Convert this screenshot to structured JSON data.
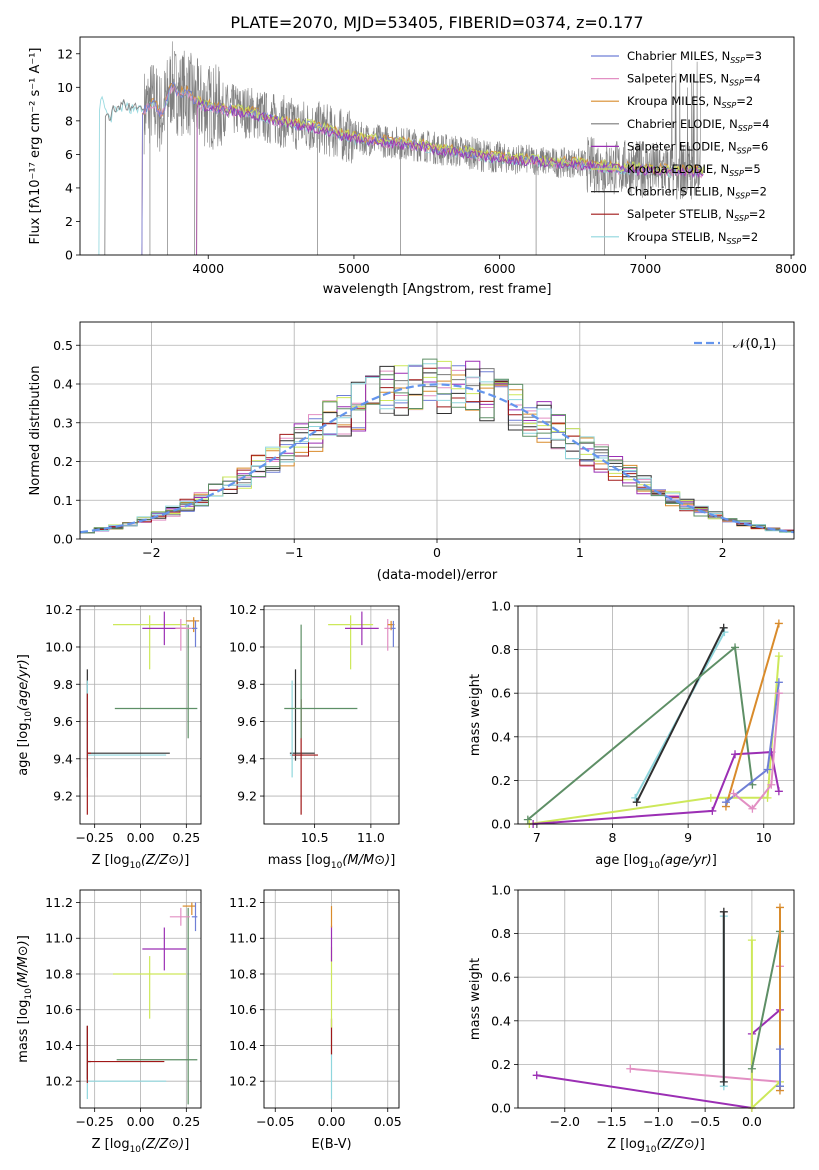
{
  "figure": {
    "title": "PLATE=2070, MJD=53405, FIBERID=0374, z=0.177"
  },
  "colors": {
    "Chabrier MILES": "#6f7fd6",
    "Salpeter MILES": "#e28fc3",
    "Kroupa MILES": "#d98b2b",
    "Chabrier ELODIE": "#7a7a7a",
    "Salpeter ELODIE": "#9b2fb4",
    "Kroupa ELODIE": "#cde85a",
    "Chabrier STELIB": "#2f2f2f",
    "Salpeter STELIB": "#a01818",
    "Kroupa STELIB": "#8fd6dd",
    "Kroupa ELODIE alt": "#5e8f66",
    "normal": "#6495ed",
    "data": "#808080"
  },
  "chart_data": [
    {
      "id": "spectrum",
      "type": "line",
      "title": "PLATE=2070, MJD=53405, FIBERID=0374, z=0.177",
      "xlabel": "wavelength [Angstrom, rest frame]",
      "ylabel": "Flux [fλ10⁻¹⁷ erg cm⁻² s⁻¹ A⁻¹]",
      "xlim": [
        3120,
        8020
      ],
      "ylim": [
        0,
        13
      ],
      "xticks": [
        4000,
        5000,
        6000,
        7000,
        8000
      ],
      "yticks": [
        0,
        2,
        4,
        6,
        8,
        10,
        12
      ],
      "grid": false,
      "legend_position": "top-right",
      "legend": [
        {
          "label": "Chabrier MILES, N_SSP=3",
          "text": "Chabrier MILES, N",
          "n": "=3",
          "color_key": "Chabrier MILES"
        },
        {
          "label": "Salpeter MILES, N_SSP=4",
          "text": "Salpeter MILES, N",
          "n": "=4",
          "color_key": "Salpeter MILES"
        },
        {
          "label": "Kroupa MILES, N_SSP=2",
          "text": "Kroupa MILES, N",
          "n": "=2",
          "color_key": "Kroupa MILES"
        },
        {
          "label": "Chabrier ELODIE, N_SSP=4",
          "text": "Chabrier ELODIE, N",
          "n": "=4",
          "color_key": "Chabrier ELODIE"
        },
        {
          "label": "Salpeter ELODIE, N_SSP=6",
          "text": "Salpeter ELODIE, N",
          "n": "=6",
          "color_key": "Salpeter ELODIE"
        },
        {
          "label": "Kroupa ELODIE, N_SSP=5",
          "text": "Kroupa ELODIE, N",
          "n": "=5",
          "color_key": "Kroupa ELODIE"
        },
        {
          "label": "Chabrier STELIB, N_SSP=2",
          "text": "Chabrier STELIB, N",
          "n": "=2",
          "color_key": "Chabrier STELIB"
        },
        {
          "label": "Salpeter STELIB, N_SSP=2",
          "text": "Salpeter STELIB, N",
          "n": "=2",
          "color_key": "Salpeter STELIB"
        },
        {
          "label": "Kroupa STELIB, N_SSP=2",
          "text": "Kroupa STELIB, N",
          "n": "=2",
          "color_key": "Kroupa STELIB"
        }
      ],
      "model_continuum": {
        "x": [
          3250,
          3270,
          3290,
          3310,
          3330,
          3350,
          3380,
          3420,
          3460,
          3500,
          3560,
          3620,
          3680,
          3750,
          3800,
          3850,
          3900,
          3950,
          4000,
          4100,
          4200,
          4300,
          4400,
          4500,
          4600,
          4700,
          4800,
          4900,
          5000,
          5100,
          5200,
          5300,
          5400,
          5500,
          5600,
          5700,
          5800,
          5900,
          6000,
          6100,
          6200,
          6300,
          6400,
          6500,
          6600,
          6700,
          6800,
          6900,
          7000,
          7100,
          7200,
          7300,
          7350
        ],
        "y": [
          8.9,
          9.4,
          8.6,
          8.4,
          8.0,
          8.8,
          8.6,
          9.0,
          8.8,
          8.9,
          8.6,
          9.2,
          8.3,
          10.2,
          9.6,
          9.8,
          9.3,
          9.0,
          8.9,
          8.7,
          8.6,
          8.5,
          8.2,
          8.0,
          7.8,
          7.7,
          7.5,
          7.2,
          7.0,
          6.9,
          6.8,
          6.7,
          6.6,
          6.5,
          6.3,
          6.2,
          6.1,
          5.9,
          5.8,
          5.7,
          5.7,
          5.6,
          5.5,
          5.5,
          5.4,
          5.3,
          5.2,
          5.2,
          5.1,
          5.1,
          5.0,
          5.0,
          5.0
        ]
      },
      "model_cutoffs": [
        {
          "color_key": "Kroupa STELIB",
          "start": 3250
        },
        {
          "color_key": "Chabrier ELODIE",
          "start": 3290
        },
        {
          "color_key": "Kroupa MILES",
          "start": 3545
        },
        {
          "color_key": "Salpeter MILES",
          "start": 3545
        },
        {
          "color_key": "Chabrier MILES",
          "start": 3545
        },
        {
          "color_key": "Kroupa ELODIE",
          "start": 3920
        },
        {
          "color_key": "Salpeter ELODIE",
          "start": 3920
        }
      ]
    },
    {
      "id": "residuals",
      "type": "histogram",
      "xlabel": "(data-model)/error",
      "ylabel": "Normed distribution",
      "xlim": [
        -2.5,
        2.5
      ],
      "ylim": [
        0,
        0.56
      ],
      "xticks": [
        -2,
        -1,
        0,
        1,
        2
      ],
      "yticks": [
        0.0,
        0.1,
        0.2,
        0.3,
        0.4,
        0.5
      ],
      "grid": true,
      "legend_position": "top-right",
      "legend": [
        {
          "label": "𝒩(0,1)",
          "color_key": "normal"
        }
      ],
      "bin_width": 0.1,
      "bin_start": -2.5
    },
    {
      "id": "age-vs-Z",
      "type": "errorbar",
      "xlabel": "Z [log10(Z/Z⊙)]",
      "ylabel": "age  [log10(age/yr)]",
      "xlim": [
        -0.33,
        0.33
      ],
      "ylim": [
        9.05,
        10.22
      ],
      "xticks": [
        -0.25,
        0.0,
        0.25
      ],
      "xtick_labels": [
        "−0.25",
        "0.00",
        "0.25"
      ],
      "yticks": [
        9.2,
        9.4,
        9.6,
        9.8,
        10.0,
        10.2
      ],
      "grid": true,
      "points": [
        {
          "color_key": "Chabrier STELIB",
          "x": -0.29,
          "y": 9.43,
          "xerr": [
            0.0,
            0.45
          ],
          "yerr": [
            0.04,
            0.45
          ]
        },
        {
          "color_key": "Kroupa STELIB",
          "x": -0.29,
          "y": 9.42,
          "xerr": [
            0.0,
            0.43
          ],
          "yerr": [
            0.12,
            0.4
          ]
        },
        {
          "color_key": "Salpeter STELIB",
          "x": -0.29,
          "y": 9.43,
          "xerr": [
            0.0,
            0.02
          ],
          "yerr": [
            0.33,
            0.32
          ]
        },
        {
          "color_key": "Kroupa ELODIE alt",
          "x": 0.26,
          "y": 9.67,
          "xerr": [
            0.4,
            0.05
          ],
          "yerr": [
            0.16,
            0.45
          ]
        },
        {
          "color_key": "Kroupa ELODIE",
          "x": 0.05,
          "y": 10.12,
          "xerr": [
            0.2,
            0.2
          ],
          "yerr": [
            0.24,
            0.05
          ]
        },
        {
          "color_key": "Salpeter ELODIE",
          "x": 0.13,
          "y": 10.1,
          "xerr": [
            0.12,
            0.12
          ],
          "yerr": [
            0.09,
            0.09
          ]
        },
        {
          "color_key": "Salpeter MILES",
          "x": 0.22,
          "y": 10.1,
          "xerr": [
            0.03,
            0.06
          ],
          "yerr": [
            0.12,
            0.05
          ]
        },
        {
          "color_key": "Kroupa MILES",
          "x": 0.29,
          "y": 10.14,
          "xerr": [
            0.04,
            0.03
          ],
          "yerr": [
            0.06,
            0.02
          ]
        },
        {
          "color_key": "Chabrier MILES",
          "x": 0.3,
          "y": 10.1,
          "xerr": [
            0.02,
            0.01
          ],
          "yerr": [
            0.1,
            0.04
          ]
        }
      ]
    },
    {
      "id": "age-vs-mass",
      "type": "errorbar",
      "xlabel": "mass [log10(M/M⊙)]",
      "ylabel": "",
      "xlim": [
        10.05,
        11.25
      ],
      "ylim": [
        9.05,
        10.22
      ],
      "xticks": [
        10.5,
        11.0
      ],
      "xtick_labels": [
        "10.5",
        "11.0"
      ],
      "yticks": [
        9.2,
        9.4,
        9.6,
        9.8,
        10.0,
        10.2
      ],
      "grid": true,
      "points": [
        {
          "color_key": "Chabrier STELIB",
          "x": 10.33,
          "y": 9.43,
          "xerr": [
            0.05,
            0.17
          ],
          "yerr": [
            0.04,
            0.45
          ]
        },
        {
          "color_key": "Kroupa STELIB",
          "x": 10.3,
          "y": 9.42,
          "xerr": [
            0.02,
            0.1
          ],
          "yerr": [
            0.12,
            0.4
          ]
        },
        {
          "color_key": "Salpeter STELIB",
          "x": 10.38,
          "y": 9.42,
          "xerr": [
            0.08,
            0.15
          ],
          "yerr": [
            0.32,
            0.3
          ]
        },
        {
          "color_key": "Kroupa ELODIE alt",
          "x": 10.38,
          "y": 9.67,
          "xerr": [
            0.15,
            0.5
          ],
          "yerr": [
            0.16,
            0.45
          ]
        },
        {
          "color_key": "Kroupa ELODIE",
          "x": 10.82,
          "y": 10.12,
          "xerr": [
            0.2,
            0.2
          ],
          "yerr": [
            0.24,
            0.05
          ]
        },
        {
          "color_key": "Salpeter ELODIE",
          "x": 10.92,
          "y": 10.1,
          "xerr": [
            0.15,
            0.15
          ],
          "yerr": [
            0.09,
            0.09
          ]
        },
        {
          "color_key": "Salpeter MILES",
          "x": 11.15,
          "y": 10.1,
          "xerr": [
            0.03,
            0.04
          ],
          "yerr": [
            0.12,
            0.05
          ]
        },
        {
          "color_key": "Kroupa MILES",
          "x": 11.18,
          "y": 10.12,
          "xerr": [
            0.03,
            0.03
          ],
          "yerr": [
            0.03,
            0.02
          ]
        },
        {
          "color_key": "Chabrier MILES",
          "x": 11.2,
          "y": 10.1,
          "xerr": [
            0.02,
            0.02
          ],
          "yerr": [
            0.1,
            0.04
          ]
        }
      ]
    },
    {
      "id": "weight-vs-age",
      "type": "line",
      "xlabel": "age  [log10(age/yr)]",
      "ylabel": "mass weight",
      "xlim": [
        6.75,
        10.4
      ],
      "ylim": [
        0,
        1
      ],
      "xticks": [
        7,
        8,
        9,
        10
      ],
      "xtick_labels": [
        "7",
        "8",
        "9",
        "10"
      ],
      "yticks": [
        0,
        0.2,
        0.4,
        0.6,
        0.8,
        1.0
      ],
      "grid": true,
      "series": [
        {
          "color_key": "Kroupa STELIB",
          "x": [
            8.3,
            9.48
          ],
          "y": [
            0.12,
            0.88
          ]
        },
        {
          "color_key": "Chabrier STELIB",
          "x": [
            8.32,
            9.47
          ],
          "y": [
            0.1,
            0.9
          ]
        },
        {
          "color_key": "Kroupa ELODIE alt",
          "x": [
            6.88,
            9.62,
            9.85
          ],
          "y": [
            0.02,
            0.81,
            0.18
          ]
        },
        {
          "color_key": "Kroupa ELODIE",
          "x": [
            6.9,
            9.3,
            10.05,
            10.2
          ],
          "y": [
            0.0,
            0.12,
            0.12,
            0.77
          ]
        },
        {
          "color_key": "Salpeter ELODIE",
          "x": [
            6.95,
            9.32,
            9.62,
            10.1,
            10.2
          ],
          "y": [
            0.0,
            0.06,
            0.32,
            0.33,
            0.15
          ]
        },
        {
          "color_key": "Kroupa MILES",
          "x": [
            9.5,
            10.2
          ],
          "y": [
            0.08,
            0.92
          ]
        },
        {
          "color_key": "Chabrier MILES",
          "x": [
            9.5,
            10.05,
            10.2
          ],
          "y": [
            0.1,
            0.25,
            0.65
          ]
        },
        {
          "color_key": "Salpeter MILES",
          "x": [
            9.6,
            9.85,
            10.1,
            10.2
          ],
          "y": [
            0.14,
            0.07,
            0.18,
            0.6
          ]
        }
      ]
    },
    {
      "id": "mass-vs-Z",
      "type": "errorbar",
      "xlabel": "Z [log10(Z/Z⊙)]",
      "ylabel": "mass [log10(M/M⊙)]",
      "xlim": [
        -0.33,
        0.33
      ],
      "ylim": [
        10.05,
        11.27
      ],
      "xticks": [
        -0.25,
        0.0,
        0.25
      ],
      "xtick_labels": [
        "−0.25",
        "0.00",
        "0.25"
      ],
      "yticks": [
        10.2,
        10.4,
        10.6,
        10.8,
        11.0,
        11.2
      ],
      "grid": true,
      "points": [
        {
          "color_key": "Kroupa STELIB",
          "x": -0.29,
          "y": 10.2,
          "xerr": [
            0.0,
            0.43
          ],
          "yerr": [
            0.1,
            0.1
          ]
        },
        {
          "color_key": "Chabrier STELIB",
          "x": -0.29,
          "y": 10.31,
          "xerr": [
            0.0,
            0.02
          ],
          "yerr": [
            0.1,
            0.2
          ]
        },
        {
          "color_key": "Salpeter STELIB",
          "x": -0.29,
          "y": 10.31,
          "xerr": [
            0.0,
            0.42
          ],
          "yerr": [
            0.12,
            0.2
          ]
        },
        {
          "color_key": "Kroupa ELODIE alt",
          "x": 0.26,
          "y": 10.32,
          "xerr": [
            0.39,
            0.05
          ],
          "yerr": [
            0.25,
            0.85
          ]
        },
        {
          "color_key": "Kroupa ELODIE",
          "x": 0.05,
          "y": 10.8,
          "xerr": [
            0.2,
            0.2
          ],
          "yerr": [
            0.25,
            0.1
          ]
        },
        {
          "color_key": "Salpeter ELODIE",
          "x": 0.13,
          "y": 10.94,
          "xerr": [
            0.12,
            0.12
          ],
          "yerr": [
            0.12,
            0.12
          ]
        },
        {
          "color_key": "Salpeter MILES",
          "x": 0.22,
          "y": 11.12,
          "xerr": [
            0.06,
            0.05
          ],
          "yerr": [
            0.05,
            0.05
          ]
        },
        {
          "color_key": "Kroupa MILES",
          "x": 0.28,
          "y": 11.18,
          "xerr": [
            0.05,
            0.02
          ],
          "yerr": [
            0.05,
            0.02
          ]
        },
        {
          "color_key": "Chabrier MILES",
          "x": 0.3,
          "y": 11.12,
          "xerr": [
            0.02,
            0.01
          ],
          "yerr": [
            0.08,
            0.08
          ]
        }
      ]
    },
    {
      "id": "mass-vs-EBV",
      "type": "errorbar",
      "xlabel": "E(B-V)",
      "ylabel": "",
      "xlim": [
        -0.06,
        0.06
      ],
      "ylim": [
        10.05,
        11.27
      ],
      "xticks": [
        -0.05,
        0.0,
        0.05
      ],
      "xtick_labels": [
        "−0.05",
        "0.00",
        "0.05"
      ],
      "yticks": [
        10.2,
        10.4,
        10.6,
        10.8,
        11.0,
        11.2
      ],
      "grid": true,
      "points": [
        {
          "color_key": "Kroupa STELIB",
          "x": 0.0,
          "y": 10.3,
          "xerr": [
            0,
            0
          ],
          "yerr": [
            0.2,
            0.2
          ]
        },
        {
          "color_key": "Salpeter STELIB",
          "x": 0.0,
          "y": 10.45,
          "xerr": [
            0,
            0
          ],
          "yerr": [
            0.1,
            0.1
          ]
        },
        {
          "color_key": "Kroupa ELODIE",
          "x": 0.0,
          "y": 10.75,
          "xerr": [
            0,
            0
          ],
          "yerr": [
            0.25,
            0.2
          ]
        },
        {
          "color_key": "Salpeter ELODIE",
          "x": 0.0,
          "y": 10.95,
          "xerr": [
            0,
            0
          ],
          "yerr": [
            0.08,
            0.12
          ]
        },
        {
          "color_key": "Kroupa MILES",
          "x": 0.0,
          "y": 11.12,
          "xerr": [
            0,
            0
          ],
          "yerr": [
            0.06,
            0.06
          ]
        }
      ]
    },
    {
      "id": "weight-vs-Z",
      "type": "line",
      "xlabel": "Z [log10(Z/Z⊙)]",
      "ylabel": "mass weight",
      "xlim": [
        -2.5,
        0.45
      ],
      "ylim": [
        0,
        1
      ],
      "xticks": [
        -2.0,
        -1.5,
        -1.0,
        -0.5,
        0.0
      ],
      "xtick_labels": [
        "−2.0",
        "−1.5",
        "−1.0",
        "−0.5",
        "0.0"
      ],
      "yticks": [
        0,
        0.2,
        0.4,
        0.6,
        0.8,
        1.0
      ],
      "grid": true,
      "series": [
        {
          "color_key": "Salpeter ELODIE",
          "x": [
            -2.3,
            0.0,
            0.0,
            0.3
          ],
          "y": [
            0.15,
            0.0,
            0.34,
            0.45
          ]
        },
        {
          "color_key": "Salpeter MILES",
          "x": [
            -1.3,
            0.3,
            0.3
          ],
          "y": [
            0.18,
            0.12,
            0.65
          ]
        },
        {
          "color_key": "Kroupa STELIB",
          "x": [
            -0.3,
            -0.3
          ],
          "y": [
            0.1,
            0.88
          ]
        },
        {
          "color_key": "Chabrier STELIB",
          "x": [
            -0.3,
            -0.3
          ],
          "y": [
            0.12,
            0.9
          ]
        },
        {
          "color_key": "Kroupa ELODIE",
          "x": [
            0.0,
            0.0,
            0.3
          ],
          "y": [
            0.77,
            0.0,
            0.12
          ]
        },
        {
          "color_key": "Kroupa ELODIE alt",
          "x": [
            0.0,
            0.3,
            0.3
          ],
          "y": [
            0.18,
            0.81,
            0.1
          ]
        },
        {
          "color_key": "Kroupa MILES",
          "x": [
            0.3,
            0.3
          ],
          "y": [
            0.08,
            0.92
          ]
        },
        {
          "color_key": "Chabrier MILES",
          "x": [
            0.3,
            0.3
          ],
          "y": [
            0.1,
            0.27
          ]
        }
      ]
    }
  ]
}
